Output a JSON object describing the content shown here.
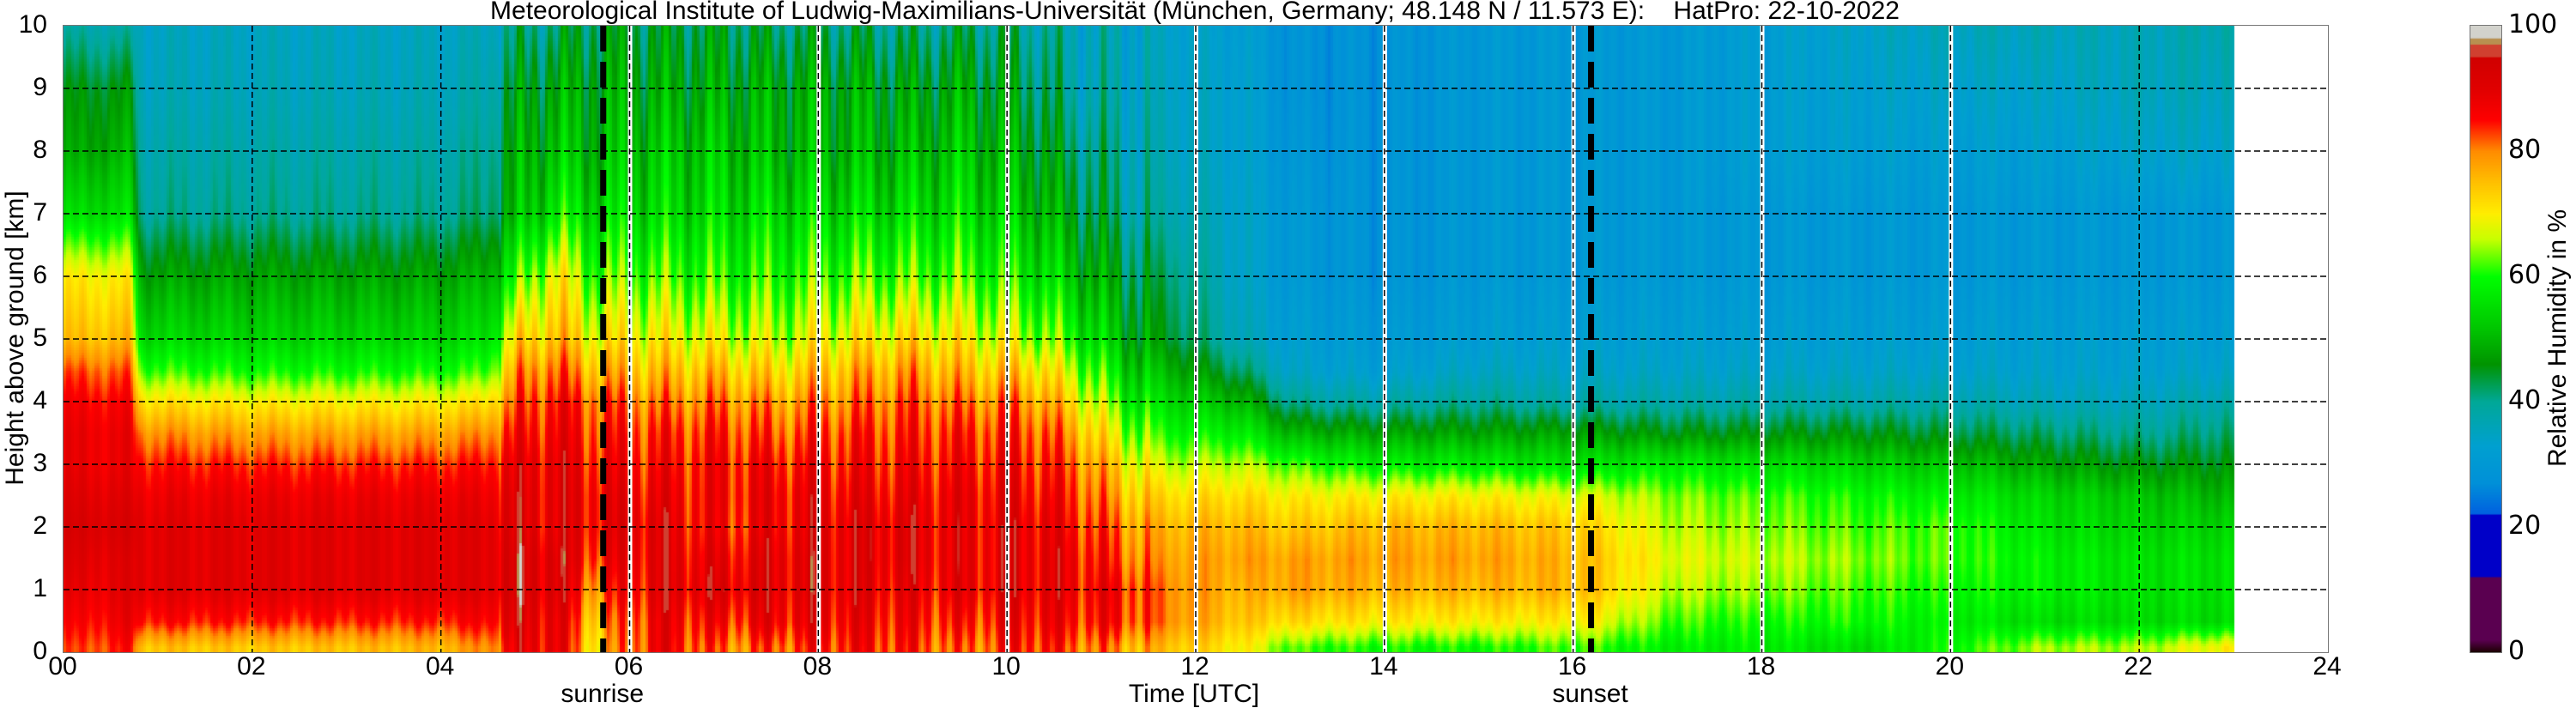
{
  "chart_data": {
    "type": "heatmap",
    "title": "Meteorological Institute of Ludwig-Maximilians-Universität (München, Germany; 48.148 N / 11.573 E):    HatPro: 22-10-2022",
    "xlabel": "Time [UTC]",
    "ylabel": "Height above ground [km]",
    "colorbar_label": "Relative Humidity in %",
    "xlim": [
      0,
      24
    ],
    "ylim": [
      0,
      10
    ],
    "clim": [
      0,
      100
    ],
    "grid": true,
    "x_ticks": [
      "00",
      "02",
      "04",
      "06",
      "08",
      "10",
      "12",
      "14",
      "16",
      "18",
      "20",
      "22",
      "24"
    ],
    "x_tick_values": [
      0,
      2,
      4,
      6,
      8,
      10,
      12,
      14,
      16,
      18,
      20,
      22,
      24
    ],
    "y_ticks": [
      "0",
      "1",
      "2",
      "3",
      "4",
      "5",
      "6",
      "7",
      "8",
      "9",
      "10"
    ],
    "colorbar_ticks": [
      "0",
      "20",
      "40",
      "60",
      "80",
      "100"
    ],
    "events": [
      {
        "label": "sunrise",
        "time": 5.72
      },
      {
        "label": "sunset",
        "time": 16.19
      }
    ],
    "data_gaps_at_hours": [
      6,
      8,
      10,
      12,
      14,
      16,
      18,
      20
    ],
    "data_end_hour": 23,
    "colormap": [
      [
        0,
        "#1a0000"
      ],
      [
        2,
        "#5a0050"
      ],
      [
        12,
        "#5a0050"
      ],
      [
        12.1,
        "#0000c8"
      ],
      [
        22,
        "#0000c8"
      ],
      [
        22.1,
        "#0060e0"
      ],
      [
        27,
        "#0090d8"
      ],
      [
        33,
        "#00a0d0"
      ],
      [
        40,
        "#00a898"
      ],
      [
        46,
        "#009400"
      ],
      [
        52,
        "#00c800"
      ],
      [
        60,
        "#00ff00"
      ],
      [
        66,
        "#c8ff00"
      ],
      [
        70,
        "#ffee00"
      ],
      [
        75,
        "#ffc000"
      ],
      [
        80,
        "#ff8c00"
      ],
      [
        85,
        "#ff0000"
      ],
      [
        90,
        "#e00000"
      ],
      [
        95,
        "#d00000"
      ],
      [
        95.1,
        "#d04030"
      ],
      [
        97,
        "#d04030"
      ],
      [
        97.1,
        "#b89050"
      ],
      [
        98,
        "#b89050"
      ],
      [
        98.1,
        "#d2d2cc"
      ],
      [
        100,
        "#d2d2cc"
      ]
    ],
    "heights_km": [
      0.1,
      0.5,
      1,
      1.5,
      2,
      2.5,
      3,
      3.5,
      4,
      4.5,
      5,
      6,
      7,
      8,
      9,
      10
    ],
    "times_h": [
      0.2,
      0.7,
      0.8,
      2,
      4,
      4.5,
      4.8,
      5.2,
      5.6,
      6.3,
      7,
      7.5,
      8.3,
      9,
      9.5,
      10.2,
      10.7,
      11.2,
      11.7,
      12.5,
      13,
      14,
      15,
      16,
      17,
      18,
      19,
      20,
      21,
      22,
      22.9
    ],
    "rh_percent": [
      [
        82,
        85,
        88,
        90,
        92,
        90,
        88,
        88,
        86,
        82,
        75,
        70,
        55,
        48,
        45,
        38
      ],
      [
        85,
        88,
        90,
        90,
        92,
        90,
        88,
        88,
        86,
        82,
        76,
        70,
        56,
        50,
        46,
        38
      ],
      [
        75,
        85,
        90,
        90,
        90,
        88,
        85,
        80,
        72,
        62,
        55,
        48,
        40,
        38,
        36,
        35
      ],
      [
        74,
        84,
        90,
        90,
        90,
        88,
        84,
        78,
        70,
        60,
        54,
        48,
        40,
        38,
        36,
        35
      ],
      [
        76,
        84,
        90,
        90,
        90,
        88,
        84,
        78,
        70,
        60,
        54,
        48,
        40,
        38,
        36,
        35
      ],
      [
        80,
        86,
        90,
        90,
        90,
        88,
        85,
        80,
        72,
        62,
        56,
        50,
        42,
        40,
        38,
        36
      ],
      [
        88,
        90,
        92,
        92,
        90,
        90,
        88,
        85,
        82,
        78,
        72,
        60,
        50,
        48,
        45,
        40
      ],
      [
        90,
        90,
        92,
        92,
        90,
        90,
        90,
        88,
        86,
        82,
        76,
        70,
        58,
        52,
        48,
        42
      ],
      [
        72,
        75,
        80,
        85,
        88,
        88,
        86,
        84,
        82,
        76,
        70,
        62,
        55,
        50,
        48,
        44
      ],
      [
        88,
        88,
        90,
        90,
        90,
        88,
        86,
        84,
        80,
        75,
        70,
        62,
        55,
        52,
        48,
        44
      ],
      [
        80,
        85,
        90,
        88,
        85,
        86,
        86,
        84,
        80,
        75,
        68,
        60,
        55,
        52,
        48,
        44
      ],
      [
        82,
        88,
        90,
        90,
        88,
        88,
        86,
        82,
        78,
        72,
        66,
        60,
        55,
        50,
        48,
        42
      ],
      [
        86,
        88,
        90,
        90,
        90,
        88,
        86,
        84,
        80,
        76,
        70,
        62,
        55,
        50,
        48,
        42
      ],
      [
        84,
        86,
        88,
        90,
        90,
        88,
        86,
        84,
        82,
        78,
        72,
        62,
        55,
        50,
        46,
        40
      ],
      [
        80,
        84,
        88,
        88,
        88,
        88,
        86,
        84,
        80,
        75,
        70,
        62,
        56,
        52,
        48,
        42
      ],
      [
        86,
        88,
        90,
        90,
        90,
        88,
        86,
        84,
        80,
        74,
        66,
        58,
        52,
        48,
        44,
        40
      ],
      [
        82,
        86,
        88,
        88,
        86,
        84,
        82,
        78,
        72,
        66,
        60,
        52,
        46,
        42,
        38,
        36
      ],
      [
        78,
        85,
        86,
        82,
        80,
        76,
        72,
        66,
        60,
        55,
        50,
        45,
        40,
        38,
        36,
        35
      ],
      [
        75,
        80,
        80,
        78,
        76,
        72,
        66,
        60,
        55,
        50,
        45,
        42,
        38,
        36,
        35,
        34
      ],
      [
        70,
        74,
        76,
        78,
        76,
        72,
        66,
        58,
        50,
        42,
        36,
        34,
        34,
        33,
        33,
        32
      ],
      [
        62,
        72,
        78,
        78,
        74,
        70,
        62,
        50,
        40,
        34,
        32,
        30,
        30,
        29,
        28,
        28
      ],
      [
        60,
        70,
        76,
        78,
        76,
        70,
        58,
        48,
        38,
        32,
        30,
        28,
        28,
        28,
        28,
        28
      ],
      [
        60,
        70,
        76,
        78,
        76,
        70,
        58,
        48,
        40,
        35,
        32,
        30,
        30,
        30,
        30,
        30
      ],
      [
        62,
        70,
        76,
        76,
        74,
        68,
        56,
        48,
        38,
        34,
        32,
        30,
        30,
        30,
        30,
        30
      ],
      [
        58,
        62,
        66,
        68,
        66,
        64,
        58,
        46,
        38,
        34,
        32,
        30,
        30,
        30,
        30,
        30
      ],
      [
        58,
        60,
        64,
        66,
        64,
        62,
        56,
        46,
        38,
        34,
        32,
        30,
        30,
        32,
        32,
        32
      ],
      [
        55,
        60,
        62,
        64,
        62,
        60,
        54,
        46,
        38,
        34,
        32,
        30,
        30,
        32,
        33,
        34
      ],
      [
        60,
        58,
        60,
        62,
        62,
        58,
        52,
        44,
        38,
        34,
        32,
        30,
        30,
        32,
        34,
        36
      ],
      [
        65,
        55,
        58,
        58,
        56,
        54,
        48,
        42,
        36,
        33,
        32,
        30,
        30,
        32,
        34,
        36
      ],
      [
        65,
        55,
        56,
        56,
        54,
        52,
        46,
        40,
        36,
        33,
        32,
        30,
        30,
        34,
        36,
        36
      ],
      [
        70,
        55,
        56,
        56,
        54,
        50,
        46,
        42,
        38,
        34,
        32,
        30,
        30,
        34,
        36,
        38
      ]
    ]
  }
}
